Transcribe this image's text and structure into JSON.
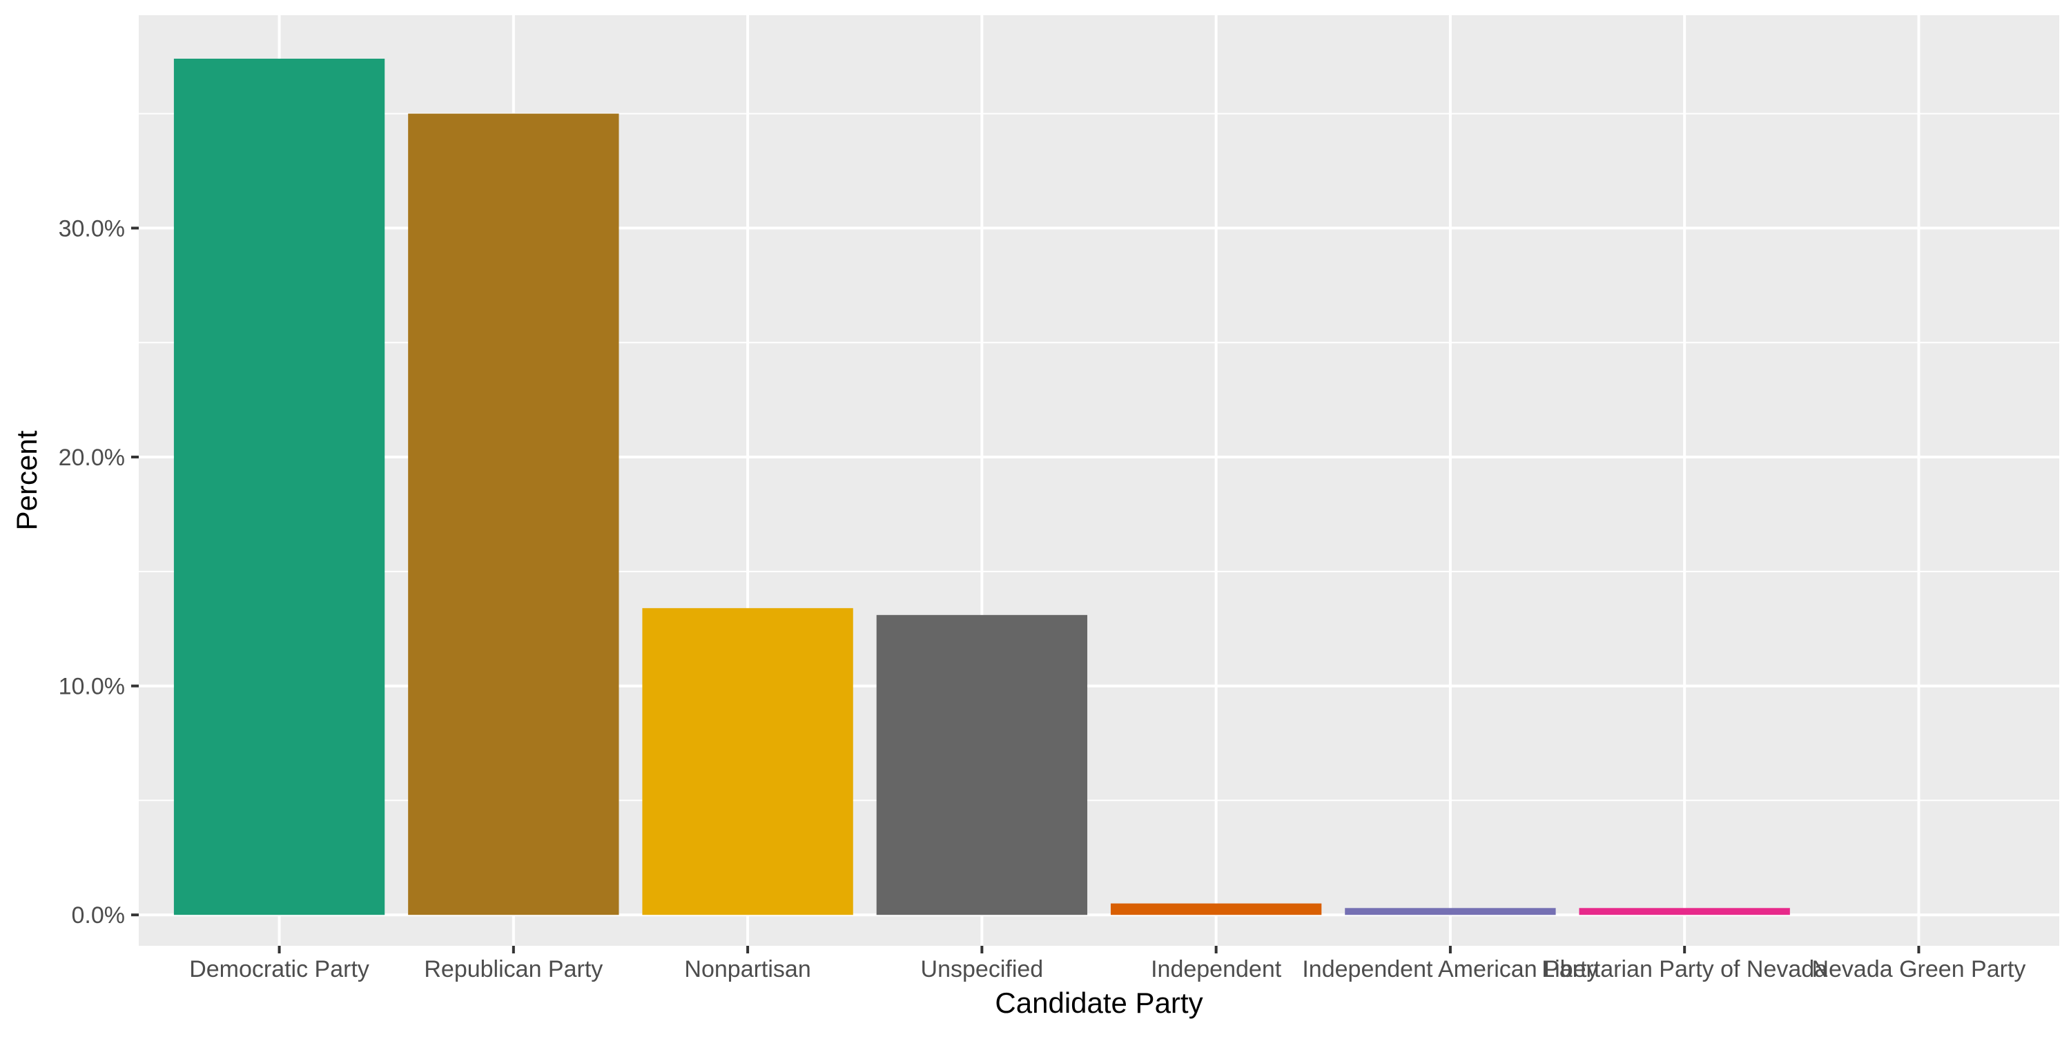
{
  "chart_data": {
    "type": "bar",
    "title": "",
    "xlabel": "Candidate Party",
    "ylabel": "Percent",
    "categories": [
      "Democratic Party",
      "Republican Party",
      "Nonpartisan",
      "Unspecified",
      "Independent",
      "Independent American Party",
      "Libertarian Party of Nevada",
      "Nevada Green Party"
    ],
    "values": [
      37.4,
      35.0,
      13.4,
      13.1,
      0.5,
      0.3,
      0.3,
      0.0
    ],
    "colors": [
      "#1b9e77",
      "#a6761d",
      "#e6ab02",
      "#666666",
      "#d95f02",
      "#7570b3",
      "#e7298a",
      "#66a61e"
    ],
    "ylim": [
      -1.35,
      39.3
    ],
    "yticks": [
      0,
      10,
      20,
      30
    ],
    "ytick_labels": [
      "0.0%",
      "10.0%",
      "20.0%",
      "30.0%"
    ],
    "grid": true,
    "legend": "none",
    "panel_background": "#ebebeb",
    "grid_color": "#ffffff"
  }
}
